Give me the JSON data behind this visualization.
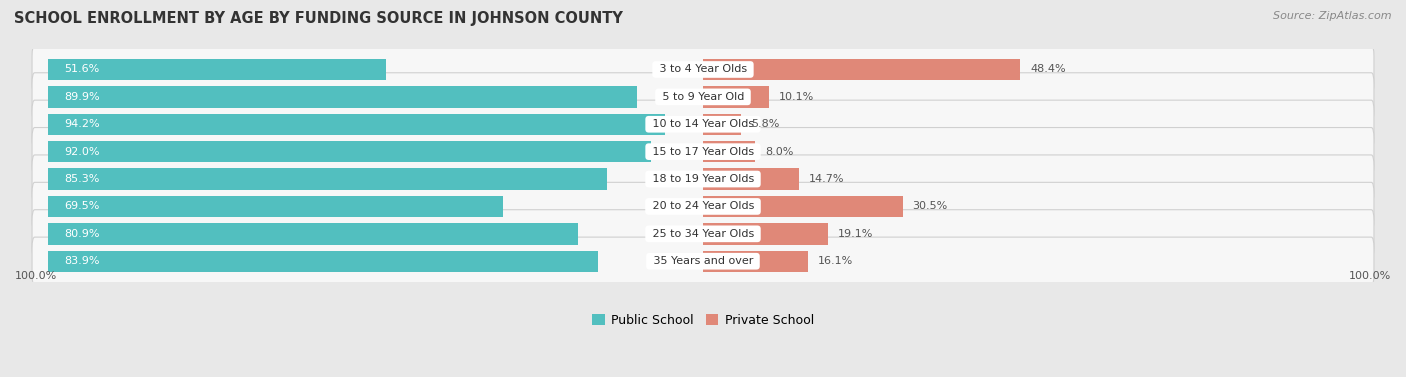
{
  "title": "SCHOOL ENROLLMENT BY AGE BY FUNDING SOURCE IN JOHNSON COUNTY",
  "source": "Source: ZipAtlas.com",
  "categories": [
    "3 to 4 Year Olds",
    "5 to 9 Year Old",
    "10 to 14 Year Olds",
    "15 to 17 Year Olds",
    "18 to 19 Year Olds",
    "20 to 24 Year Olds",
    "25 to 34 Year Olds",
    "35 Years and over"
  ],
  "public_values": [
    51.6,
    89.9,
    94.2,
    92.0,
    85.3,
    69.5,
    80.9,
    83.9
  ],
  "private_values": [
    48.4,
    10.1,
    5.8,
    8.0,
    14.7,
    30.5,
    19.1,
    16.1
  ],
  "public_color": "#52BFBF",
  "private_color": "#E08878",
  "public_label": "Public School",
  "private_label": "Private School",
  "bg_color": "#e8e8e8",
  "panel_color": "#f7f7f7",
  "panel_edge_color": "#d0d0d0",
  "label_color_inside": "#ffffff",
  "label_color_outside": "#555555",
  "cat_label_color": "#333333",
  "axis_label": "100.0%",
  "title_fontsize": 10.5,
  "source_fontsize": 8,
  "bar_label_fontsize": 8,
  "cat_label_fontsize": 8
}
